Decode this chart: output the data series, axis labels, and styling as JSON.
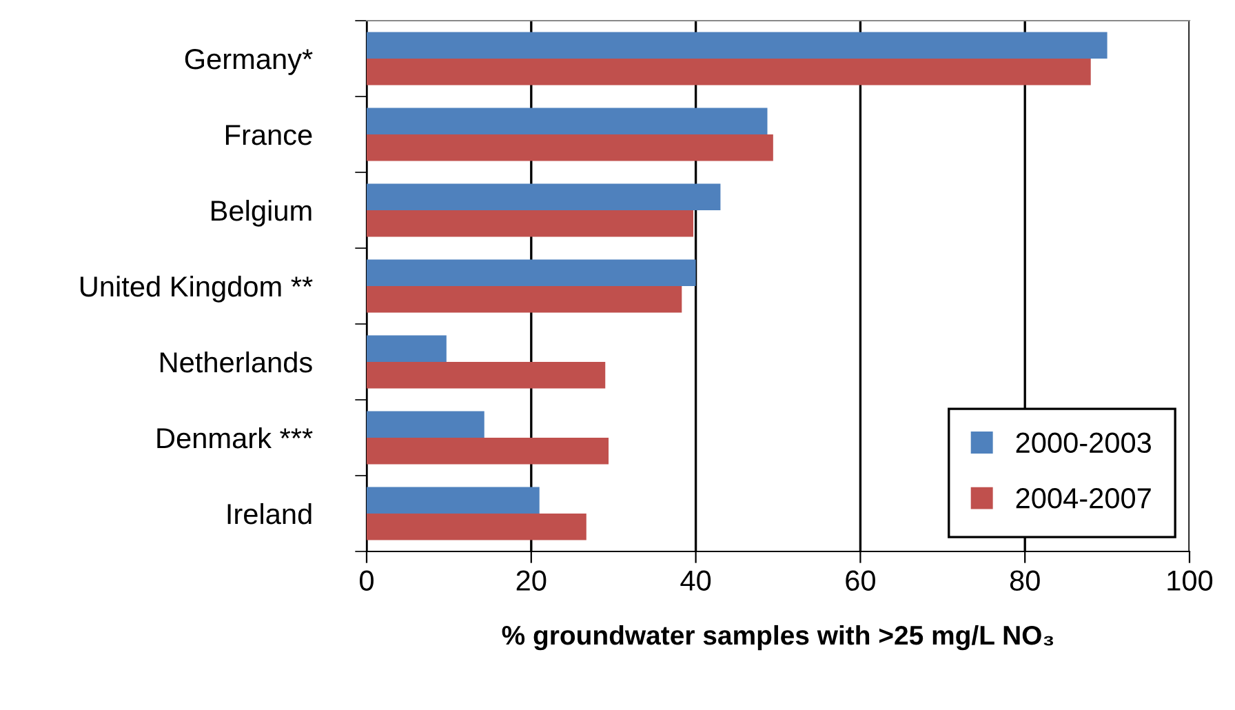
{
  "chart_data": {
    "type": "bar",
    "orientation": "horizontal",
    "categories": [
      "Germany*",
      "France",
      "Belgium",
      "United Kingdom **",
      "Netherlands",
      "Denmark ***",
      "Ireland"
    ],
    "series": [
      {
        "name": "2000-2003",
        "color": "#4f81bd",
        "values": [
          90.0,
          48.7,
          43.0,
          40.0,
          9.7,
          14.3,
          21.0
        ]
      },
      {
        "name": "2004-2007",
        "color": "#c0504d",
        "values": [
          88.0,
          49.4,
          39.7,
          38.3,
          29.0,
          29.4,
          26.7
        ]
      }
    ],
    "xlabel": "% groundwater samples with >25 mg/L NO₃",
    "xlim": [
      0,
      100
    ],
    "xticks": [
      0,
      20,
      40,
      60,
      80,
      100
    ],
    "grid": "x",
    "legend": "bottom right"
  }
}
